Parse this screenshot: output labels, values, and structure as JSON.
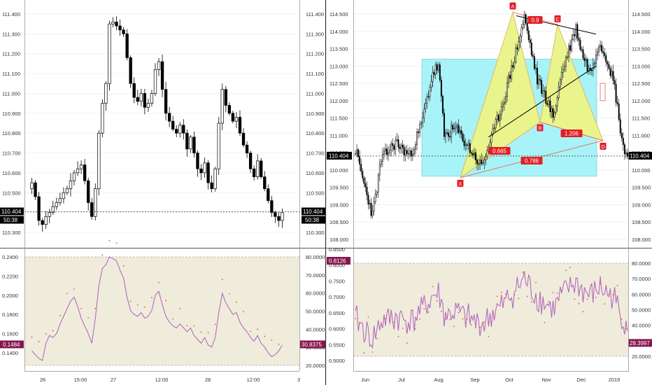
{
  "left_chart": {
    "price_axis_ticks": [
      "111.400",
      "111.300",
      "111.200",
      "111.100",
      "111.000",
      "110.900",
      "110.800",
      "110.700",
      "110.600",
      "110.500",
      "110.400",
      "110.300"
    ],
    "time_ticks": [
      "26",
      "15:00",
      "27",
      "12:00",
      "28",
      "12:00",
      "3"
    ],
    "last_price_label": "110.404",
    "countdown_label": "50:38",
    "indicator_ticks_left": [
      "0.2400",
      "0.2200",
      "0.2000",
      "0.1800",
      "0.1600",
      "0.1400"
    ],
    "indicator_ticks_right": [
      "80.0000",
      "70.0000",
      "60.0000",
      "50.0000",
      "40.0000",
      "30.0000",
      "20.0000"
    ],
    "indicator_left_value": "0.1484",
    "indicator_right_value": "30.8375"
  },
  "right_chart": {
    "price_axis_ticks": [
      "114.500",
      "114.000",
      "113.500",
      "113.000",
      "112.500",
      "112.000",
      "111.500",
      "111.000",
      "110.500",
      "110.000",
      "109.500",
      "109.000",
      "108.500",
      "108.000"
    ],
    "time_ticks": [
      "Jun",
      "Jul",
      "Aug",
      "Sep",
      "Oct",
      "Nov",
      "Dec",
      "2019"
    ],
    "last_price_label": "110.404",
    "pattern_points": [
      "X",
      "A",
      "B",
      "C",
      "D"
    ],
    "ratios": {
      "xb": "0.665",
      "ac": "0.9",
      "bd": "1.206",
      "xd": "0.788"
    },
    "indicator_ticks_left": [
      "0.8500",
      "0.8000",
      "0.7500",
      "0.7000",
      "0.6500",
      "0.6000",
      "0.5500",
      "0.5000"
    ],
    "indicator_ticks_right": [
      "80.0000",
      "70.0000",
      "60.0000",
      "50.0000",
      "40.0000",
      "30.0000",
      "20.0000"
    ],
    "indicator_left_value": "0.8126",
    "indicator_right_value": "28.3997"
  },
  "colors": {
    "bull": "#ffffff",
    "bear": "#000000",
    "indicator_line": "#b36bbd",
    "indicator_band": "#f0ecdc",
    "pattern_fill": "#e9f58c",
    "pattern_edge": "#e0b15c",
    "box_fill": "#a8f3f7",
    "box_edge": "#7fd3d8",
    "label_red": "#e31e24",
    "indicator_tag": "#85164d"
  },
  "chart_data": [
    {
      "type": "candlestick",
      "title": "",
      "ylim": [
        110.25,
        111.42
      ],
      "x": [
        "26",
        "15:00",
        "27",
        "12:00",
        "28",
        "12:00"
      ],
      "last": 110.404
    },
    {
      "type": "line",
      "title": "",
      "series_left_ylim": [
        0.125,
        0.245
      ],
      "series_right_ylim": [
        17,
        82
      ],
      "last_left": 0.1484,
      "last_right": 30.8375
    },
    {
      "type": "candlestick",
      "title": "",
      "ylim": [
        107.85,
        114.75
      ],
      "x": [
        "Jun",
        "Jul",
        "Aug",
        "Sep",
        "Oct",
        "Nov",
        "Dec",
        "2019"
      ],
      "harmonic_pattern": {
        "X": {
          "date": "Aug",
          "price": 109.78
        },
        "A": {
          "date": "Oct",
          "price": 114.55
        },
        "B": {
          "date": "Nov",
          "price": 111.38
        },
        "C": {
          "date": "Nov",
          "price": 114.2
        },
        "D": {
          "date": "Dec",
          "price": 110.85
        }
      },
      "last": 110.404
    },
    {
      "type": "line",
      "title": "",
      "series_left_ylim": [
        0.47,
        0.855
      ],
      "series_right_ylim": [
        14,
        84
      ],
      "last_left": 0.8126,
      "last_right": 28.3997
    }
  ]
}
